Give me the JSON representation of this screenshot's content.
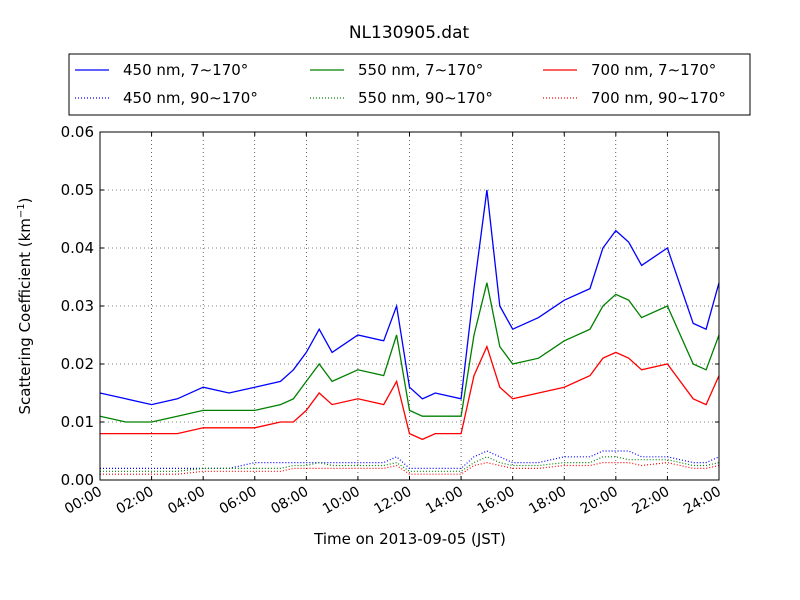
{
  "chart_data": {
    "type": "line",
    "title": "NL130905.dat",
    "xlabel": "Time on 2013-09-05 (JST)",
    "ylabel": "Scattering Coefficient (km",
    "ylabel_sup": "−1",
    "ylabel_end": ")",
    "xlim": [
      0,
      24
    ],
    "ylim": [
      0,
      0.06
    ],
    "x_unit": "hour",
    "grid": true,
    "legend_position": "top",
    "x_ticks": [
      "00:00",
      "02:00",
      "04:00",
      "06:00",
      "08:00",
      "10:00",
      "12:00",
      "14:00",
      "16:00",
      "18:00",
      "20:00",
      "22:00",
      "24:00"
    ],
    "y_ticks": [
      "0.00",
      "0.01",
      "0.02",
      "0.03",
      "0.04",
      "0.05",
      "0.06"
    ],
    "y_tick_values": [
      0,
      0.01,
      0.02,
      0.03,
      0.04,
      0.05,
      0.06
    ],
    "x": [
      0,
      1,
      2,
      3,
      4,
      5,
      6,
      7,
      7.5,
      8,
      8.5,
      9,
      10,
      11,
      11.5,
      12,
      12.5,
      13,
      14,
      14.5,
      15,
      15.5,
      16,
      17,
      18,
      19,
      19.5,
      20,
      20.5,
      21,
      22,
      23,
      23.5,
      24
    ],
    "series": [
      {
        "name": "450 nm, 7∼170°",
        "color": "#0000ff",
        "style": "solid",
        "values": [
          0.015,
          0.014,
          0.013,
          0.014,
          0.016,
          0.015,
          0.016,
          0.017,
          0.019,
          0.022,
          0.026,
          0.022,
          0.025,
          0.024,
          0.03,
          0.016,
          0.014,
          0.015,
          0.014,
          0.033,
          0.05,
          0.03,
          0.026,
          0.028,
          0.031,
          0.033,
          0.04,
          0.043,
          0.041,
          0.037,
          0.04,
          0.027,
          0.026,
          0.034
        ]
      },
      {
        "name": "550 nm, 7∼170°",
        "color": "#008000",
        "style": "solid",
        "values": [
          0.011,
          0.01,
          0.01,
          0.011,
          0.012,
          0.012,
          0.012,
          0.013,
          0.014,
          0.017,
          0.02,
          0.017,
          0.019,
          0.018,
          0.025,
          0.012,
          0.011,
          0.011,
          0.011,
          0.025,
          0.034,
          0.023,
          0.02,
          0.021,
          0.024,
          0.026,
          0.03,
          0.032,
          0.031,
          0.028,
          0.03,
          0.02,
          0.019,
          0.025
        ]
      },
      {
        "name": "700 nm, 7∼170°",
        "color": "#ff0000",
        "style": "solid",
        "values": [
          0.008,
          0.008,
          0.008,
          0.008,
          0.009,
          0.009,
          0.009,
          0.01,
          0.01,
          0.012,
          0.015,
          0.013,
          0.014,
          0.013,
          0.017,
          0.008,
          0.007,
          0.008,
          0.008,
          0.018,
          0.023,
          0.016,
          0.014,
          0.015,
          0.016,
          0.018,
          0.021,
          0.022,
          0.021,
          0.019,
          0.02,
          0.014,
          0.013,
          0.018
        ]
      },
      {
        "name": "450 nm, 90∼170°",
        "color": "#0000ff",
        "style": "dotted",
        "values": [
          0.002,
          0.002,
          0.002,
          0.002,
          0.002,
          0.002,
          0.003,
          0.003,
          0.003,
          0.003,
          0.003,
          0.003,
          0.003,
          0.003,
          0.004,
          0.002,
          0.002,
          0.002,
          0.002,
          0.004,
          0.005,
          0.004,
          0.003,
          0.003,
          0.004,
          0.004,
          0.005,
          0.005,
          0.005,
          0.004,
          0.004,
          0.003,
          0.003,
          0.004
        ]
      },
      {
        "name": "550 nm, 90∼170°",
        "color": "#008000",
        "style": "dotted",
        "values": [
          0.0015,
          0.0015,
          0.0015,
          0.0015,
          0.002,
          0.002,
          0.002,
          0.002,
          0.0025,
          0.0025,
          0.003,
          0.0025,
          0.0025,
          0.0025,
          0.003,
          0.0015,
          0.0015,
          0.0015,
          0.0015,
          0.003,
          0.004,
          0.003,
          0.0025,
          0.0025,
          0.003,
          0.003,
          0.004,
          0.004,
          0.0035,
          0.0035,
          0.0035,
          0.0025,
          0.0025,
          0.003
        ]
      },
      {
        "name": "700 nm, 90∼170°",
        "color": "#ff0000",
        "style": "dotted",
        "values": [
          0.001,
          0.001,
          0.001,
          0.001,
          0.0015,
          0.0015,
          0.0015,
          0.0015,
          0.002,
          0.002,
          0.002,
          0.002,
          0.002,
          0.002,
          0.0025,
          0.001,
          0.001,
          0.001,
          0.001,
          0.0025,
          0.003,
          0.0025,
          0.002,
          0.002,
          0.0025,
          0.0025,
          0.003,
          0.003,
          0.003,
          0.0025,
          0.003,
          0.002,
          0.002,
          0.0025
        ]
      }
    ]
  }
}
